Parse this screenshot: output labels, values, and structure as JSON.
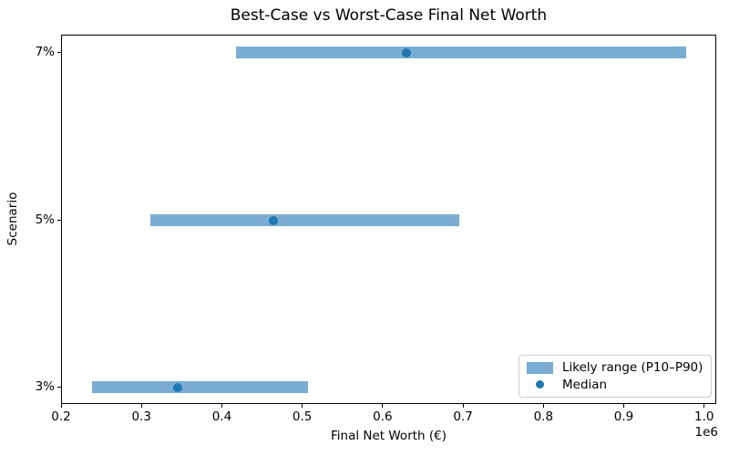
{
  "title": "Best-Case vs Worst-Case Final Net Worth",
  "chart_data": {
    "type": "bar",
    "subtype": "horizontal-range-bar-with-median-points",
    "title": "Best-Case vs Worst-Case Final Net Worth",
    "xlabel": "Final Net Worth (€)",
    "ylabel": "Scenario",
    "x_offset_label": "1e6",
    "categories": [
      "7%",
      "5%",
      "3%"
    ],
    "series": [
      {
        "name": "Likely range (P10–P90)",
        "type": "range",
        "low": [
          416000,
          310000,
          237000
        ],
        "high": [
          977000,
          694000,
          506000
        ]
      },
      {
        "name": "Median",
        "type": "point",
        "values": [
          629000,
          463000,
          344000
        ]
      }
    ],
    "xlim": [
      200000,
      1015000
    ],
    "xticks": [
      200000,
      300000,
      400000,
      500000,
      600000,
      700000,
      800000,
      900000,
      1000000
    ],
    "xtick_labels": [
      "0.2",
      "0.3",
      "0.4",
      "0.5",
      "0.6",
      "0.7",
      "0.8",
      "0.9",
      "1.0"
    ],
    "grid": false,
    "legend_position": "lower right",
    "colors": {
      "range_bar": "#79add2",
      "median_dot": "#1f77b4",
      "spine": "#000000",
      "legend_border": "#cccccc",
      "background": "#ffffff"
    }
  },
  "legend": {
    "items": [
      {
        "label": "Likely range (P10–P90)",
        "swatch": "patch"
      },
      {
        "label": "Median",
        "swatch": "dot"
      }
    ]
  }
}
